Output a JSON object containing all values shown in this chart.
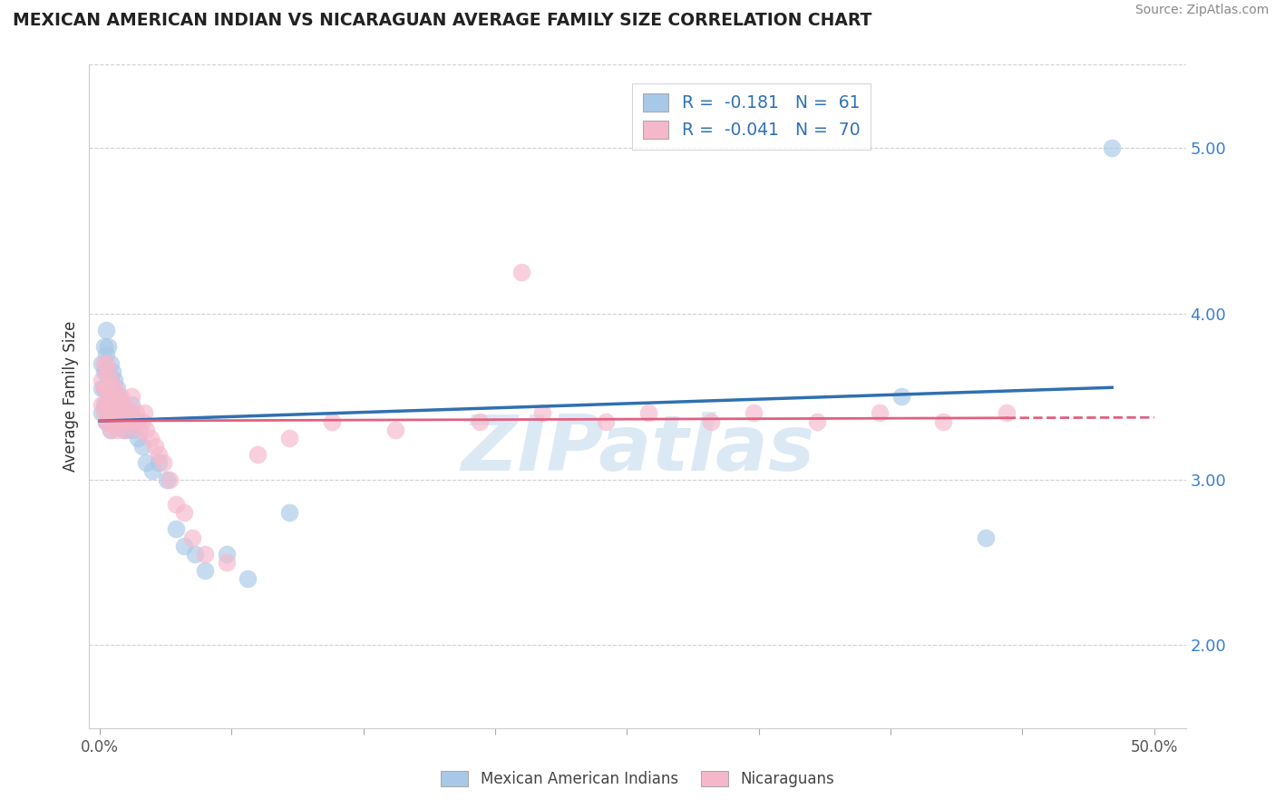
{
  "title": "MEXICAN AMERICAN INDIAN VS NICARAGUAN AVERAGE FAMILY SIZE CORRELATION CHART",
  "source": "Source: ZipAtlas.com",
  "ylabel": "Average Family Size",
  "right_yticks": [
    2.0,
    3.0,
    4.0,
    5.0
  ],
  "watermark": "ZIPatlas",
  "blue_r": -0.181,
  "blue_n": 61,
  "pink_r": -0.041,
  "pink_n": 70,
  "blue_color": "#a8c8e8",
  "pink_color": "#f5b8cb",
  "blue_line_color": "#3070b0",
  "pink_line_color": "#e06080",
  "blue_x": [
    0.001,
    0.001,
    0.001,
    0.002,
    0.002,
    0.002,
    0.002,
    0.003,
    0.003,
    0.003,
    0.003,
    0.003,
    0.003,
    0.004,
    0.004,
    0.004,
    0.004,
    0.005,
    0.005,
    0.005,
    0.005,
    0.005,
    0.006,
    0.006,
    0.006,
    0.006,
    0.007,
    0.007,
    0.007,
    0.008,
    0.008,
    0.008,
    0.009,
    0.009,
    0.01,
    0.01,
    0.011,
    0.011,
    0.012,
    0.013,
    0.013,
    0.014,
    0.015,
    0.016,
    0.017,
    0.018,
    0.02,
    0.022,
    0.025,
    0.028,
    0.032,
    0.036,
    0.04,
    0.045,
    0.05,
    0.06,
    0.07,
    0.09,
    0.38,
    0.42,
    0.48
  ],
  "blue_y": [
    3.7,
    3.55,
    3.4,
    3.8,
    3.65,
    3.55,
    3.45,
    3.9,
    3.75,
    3.65,
    3.55,
    3.45,
    3.35,
    3.8,
    3.65,
    3.55,
    3.45,
    3.7,
    3.6,
    3.5,
    3.4,
    3.3,
    3.65,
    3.55,
    3.45,
    3.35,
    3.6,
    3.5,
    3.4,
    3.55,
    3.45,
    3.35,
    3.5,
    3.4,
    3.45,
    3.35,
    3.4,
    3.3,
    3.35,
    3.4,
    3.3,
    3.35,
    3.45,
    3.3,
    3.35,
    3.25,
    3.2,
    3.1,
    3.05,
    3.1,
    3.0,
    2.7,
    2.6,
    2.55,
    2.45,
    2.55,
    2.4,
    2.8,
    3.5,
    2.65,
    5.0
  ],
  "pink_x": [
    0.001,
    0.001,
    0.002,
    0.002,
    0.002,
    0.003,
    0.003,
    0.003,
    0.003,
    0.004,
    0.004,
    0.004,
    0.004,
    0.005,
    0.005,
    0.005,
    0.005,
    0.006,
    0.006,
    0.006,
    0.007,
    0.007,
    0.007,
    0.008,
    0.008,
    0.008,
    0.009,
    0.009,
    0.01,
    0.01,
    0.011,
    0.011,
    0.012,
    0.012,
    0.013,
    0.014,
    0.015,
    0.015,
    0.016,
    0.017,
    0.018,
    0.019,
    0.02,
    0.021,
    0.022,
    0.024,
    0.026,
    0.028,
    0.03,
    0.033,
    0.036,
    0.04,
    0.044,
    0.05,
    0.06,
    0.075,
    0.09,
    0.11,
    0.14,
    0.18,
    0.21,
    0.24,
    0.26,
    0.29,
    0.31,
    0.34,
    0.37,
    0.4,
    0.43,
    0.2
  ],
  "pink_y": [
    3.6,
    3.45,
    3.7,
    3.55,
    3.4,
    3.7,
    3.55,
    3.45,
    3.35,
    3.65,
    3.55,
    3.45,
    3.35,
    3.6,
    3.5,
    3.4,
    3.3,
    3.55,
    3.45,
    3.35,
    3.55,
    3.45,
    3.35,
    3.5,
    3.4,
    3.3,
    3.45,
    3.35,
    3.5,
    3.4,
    3.45,
    3.35,
    3.4,
    3.3,
    3.35,
    3.4,
    3.5,
    3.4,
    3.35,
    3.4,
    3.35,
    3.3,
    3.35,
    3.4,
    3.3,
    3.25,
    3.2,
    3.15,
    3.1,
    3.0,
    2.85,
    2.8,
    2.65,
    2.55,
    2.5,
    3.15,
    3.25,
    3.35,
    3.3,
    3.35,
    3.4,
    3.35,
    3.4,
    3.35,
    3.4,
    3.35,
    3.4,
    3.35,
    3.4,
    4.25
  ]
}
